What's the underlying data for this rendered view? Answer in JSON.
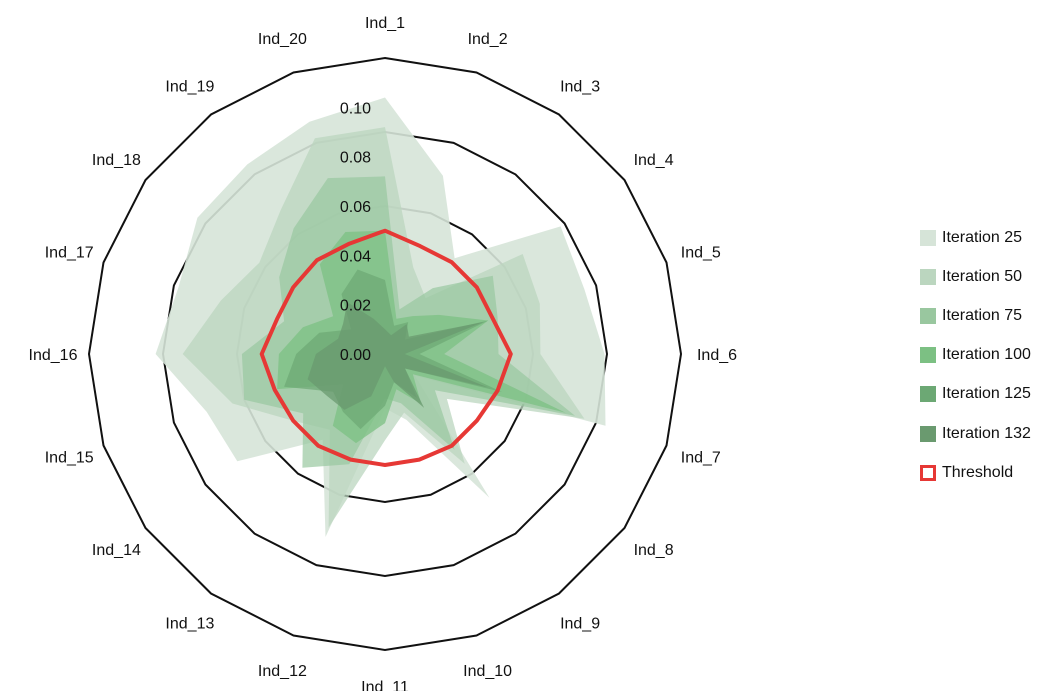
{
  "chart_data": {
    "type": "radar",
    "axes": [
      "Ind_1",
      "Ind_2",
      "Ind_3",
      "Ind_4",
      "Ind_5",
      "Ind_6",
      "Ind_7",
      "Ind_8",
      "Ind_9",
      "Ind_10",
      "Ind_11",
      "Ind_12",
      "Ind_13",
      "Ind_14",
      "Ind_15",
      "Ind_16",
      "Ind_17",
      "Ind_18",
      "Ind_19",
      "Ind_20"
    ],
    "rlim": [
      0,
      0.12
    ],
    "tick_values": [
      0,
      0.02,
      0.04,
      0.06,
      0.08,
      0.1
    ],
    "tick_labels": [
      "0.00",
      "0.02",
      "0.04",
      "0.06",
      "0.08",
      "0.10"
    ],
    "grid": true,
    "legend_position": "right",
    "series": [
      {
        "name": "Iteration 25",
        "color": "#d6e4d8",
        "opacity": 0.9,
        "values": [
          0.104,
          0.076,
          0.048,
          0.088,
          0.085,
          0.089,
          0.094,
          0.015,
          0.072,
          0.028,
          0.022,
          0.078,
          0.043,
          0.074,
          0.076,
          0.093,
          0.088,
          0.094,
          0.095,
          0.099
        ]
      },
      {
        "name": "Iteration 50",
        "color": "#bbd6bf",
        "opacity": 0.75,
        "values": [
          0.092,
          0.037,
          0.028,
          0.069,
          0.066,
          0.063,
          0.085,
          0.031,
          0.055,
          0.025,
          0.035,
          0.074,
          0.038,
          0.046,
          0.065,
          0.082,
          0.07,
          0.063,
          0.072,
          0.092
        ]
      },
      {
        "name": "Iteration 75",
        "color": "#99c79f",
        "opacity": 0.7,
        "values": [
          0.072,
          0.019,
          0.033,
          0.054,
          0.048,
          0.046,
          0.081,
          0.025,
          0.048,
          0.021,
          0.018,
          0.047,
          0.057,
          0.041,
          0.06,
          0.058,
          0.043,
          0.053,
          0.063,
          0.075
        ]
      },
      {
        "name": "Iteration 100",
        "color": "#7cc083",
        "opacity": 0.75,
        "values": [
          0.05,
          0.015,
          0.019,
          0.027,
          0.044,
          0.024,
          0.077,
          0.014,
          0.025,
          0.015,
          0.028,
          0.038,
          0.036,
          0.021,
          0.046,
          0.043,
          0.035,
          0.026,
          0.045,
          0.052
        ]
      },
      {
        "name": "Iteration 125",
        "color": "#6ca874",
        "opacity": 0.7,
        "values": [
          0.03,
          0.012,
          0.016,
          0.01,
          0.044,
          0.014,
          0.05,
          0.01,
          0.022,
          0.012,
          0.021,
          0.032,
          0.029,
          0.026,
          0.043,
          0.036,
          0.028,
          0.017,
          0.03,
          0.036
        ]
      },
      {
        "name": "Iteration 132",
        "color": "#6a9a6f",
        "opacity": 0.75,
        "values": [
          0.01,
          0.008,
          0.015,
          0.012,
          0.042,
          0.008,
          0.044,
          0.01,
          0.027,
          0.012,
          0.005,
          0.018,
          0.028,
          0.029,
          0.033,
          0.028,
          0.02,
          0.021,
          0.026,
          0.015
        ]
      }
    ],
    "threshold": {
      "name": "Threshold",
      "color": "#e63835",
      "values": [
        0.05,
        0.046,
        0.046,
        0.046,
        0.046,
        0.051,
        0.048,
        0.046,
        0.046,
        0.045,
        0.045,
        0.045,
        0.046,
        0.046,
        0.047,
        0.05,
        0.046,
        0.046,
        0.047,
        0.047
      ]
    }
  }
}
